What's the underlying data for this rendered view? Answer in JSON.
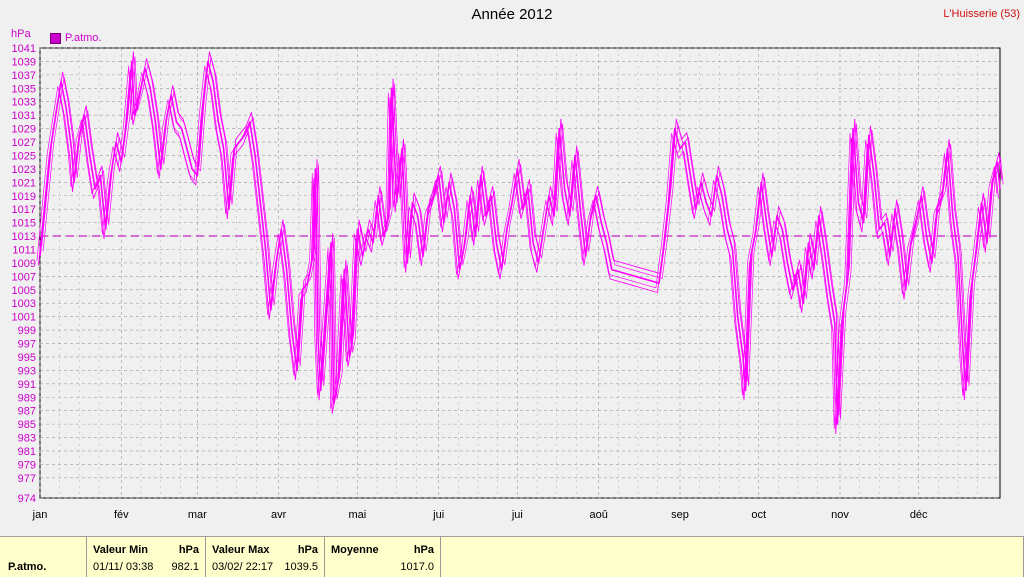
{
  "header": {
    "title": "Année 2012",
    "station": "L'Huisserie (53)"
  },
  "colors": {
    "series": "#ff00ff",
    "axis_text": "#cc00cc",
    "mean_line": "#cc44cc",
    "grid": "#9a9a9a"
  },
  "chart_data": {
    "type": "line",
    "title": "Année 2012",
    "ylabel": "hPa",
    "ylim": [
      974,
      1041
    ],
    "yticks": [
      974,
      977,
      979,
      981,
      983,
      985,
      987,
      989,
      991,
      993,
      995,
      997,
      999,
      1001,
      1003,
      1005,
      1007,
      1009,
      1011,
      1013,
      1015,
      1017,
      1019,
      1021,
      1023,
      1025,
      1027,
      1029,
      1031,
      1033,
      1035,
      1037,
      1039,
      1041
    ],
    "xlim": [
      0,
      366
    ],
    "months": [
      {
        "label": "jan",
        "day": 0
      },
      {
        "label": "fév",
        "day": 31
      },
      {
        "label": "mar",
        "day": 60
      },
      {
        "label": "avr",
        "day": 91
      },
      {
        "label": "mai",
        "day": 121
      },
      {
        "label": "jui",
        "day": 152
      },
      {
        "label": "jui",
        "day": 182
      },
      {
        "label": "aoû",
        "day": 213
      },
      {
        "label": "sep",
        "day": 244
      },
      {
        "label": "oct",
        "day": 274
      },
      {
        "label": "nov",
        "day": 305
      },
      {
        "label": "déc",
        "day": 335
      }
    ],
    "grid": true,
    "legend_position": "top-left",
    "mean_line": 1013,
    "series": [
      {
        "name": "P.atmo.",
        "points": [
          [
            0,
            1010
          ],
          [
            2,
            1018
          ],
          [
            4,
            1026
          ],
          [
            6,
            1031
          ],
          [
            8,
            1036
          ],
          [
            10,
            1032
          ],
          [
            12,
            1026
          ],
          [
            13,
            1021
          ],
          [
            15,
            1028
          ],
          [
            17,
            1031
          ],
          [
            19,
            1025
          ],
          [
            21,
            1020
          ],
          [
            23,
            1022
          ],
          [
            25,
            1014
          ],
          [
            27,
            1022
          ],
          [
            29,
            1027
          ],
          [
            31,
            1024
          ],
          [
            33,
            1030
          ],
          [
            35,
            1039
          ],
          [
            36,
            1031
          ],
          [
            38,
            1034
          ],
          [
            40,
            1038
          ],
          [
            42,
            1035
          ],
          [
            44,
            1030
          ],
          [
            46,
            1023
          ],
          [
            48,
            1030
          ],
          [
            50,
            1034
          ],
          [
            52,
            1030
          ],
          [
            54,
            1029
          ],
          [
            56,
            1026
          ],
          [
            58,
            1023
          ],
          [
            60,
            1022
          ],
          [
            62,
            1032
          ],
          [
            64,
            1039
          ],
          [
            66,
            1036
          ],
          [
            68,
            1030
          ],
          [
            70,
            1026
          ],
          [
            72,
            1017
          ],
          [
            74,
            1026
          ],
          [
            76,
            1027
          ],
          [
            78,
            1028
          ],
          [
            80,
            1030
          ],
          [
            82,
            1025
          ],
          [
            84,
            1018
          ],
          [
            86,
            1011
          ],
          [
            88,
            1002
          ],
          [
            90,
            1009
          ],
          [
            92,
            1014
          ],
          [
            94,
            1008
          ],
          [
            96,
            999
          ],
          [
            98,
            993
          ],
          [
            100,
            1005
          ],
          [
            102,
            1006
          ],
          [
            104,
            1010
          ],
          [
            105,
            1023
          ],
          [
            106,
            998
          ],
          [
            107,
            990
          ],
          [
            109,
            1001
          ],
          [
            111,
            1012
          ],
          [
            112,
            988
          ],
          [
            114,
            992
          ],
          [
            116,
            1008
          ],
          [
            118,
            995
          ],
          [
            119,
            997
          ],
          [
            121,
            1014
          ],
          [
            123,
            1010
          ],
          [
            125,
            1014
          ],
          [
            127,
            1012
          ],
          [
            129,
            1019
          ],
          [
            131,
            1013
          ],
          [
            133,
            1016
          ],
          [
            134,
            1035
          ],
          [
            136,
            1018
          ],
          [
            138,
            1026
          ],
          [
            140,
            1009
          ],
          [
            142,
            1018
          ],
          [
            144,
            1016
          ],
          [
            146,
            1010
          ],
          [
            148,
            1017
          ],
          [
            150,
            1019
          ],
          [
            152,
            1022
          ],
          [
            154,
            1015
          ],
          [
            156,
            1021
          ],
          [
            158,
            1017
          ],
          [
            160,
            1008
          ],
          [
            162,
            1012
          ],
          [
            164,
            1019
          ],
          [
            166,
            1013
          ],
          [
            168,
            1022
          ],
          [
            170,
            1016
          ],
          [
            172,
            1019
          ],
          [
            174,
            1012
          ],
          [
            176,
            1008
          ],
          [
            178,
            1014
          ],
          [
            180,
            1018
          ],
          [
            182,
            1023
          ],
          [
            184,
            1017
          ],
          [
            186,
            1020
          ],
          [
            188,
            1012
          ],
          [
            190,
            1009
          ],
          [
            192,
            1014
          ],
          [
            194,
            1019
          ],
          [
            196,
            1016
          ],
          [
            198,
            1029
          ],
          [
            200,
            1020
          ],
          [
            202,
            1016
          ],
          [
            204,
            1025
          ],
          [
            206,
            1017
          ],
          [
            208,
            1010
          ],
          [
            210,
            1016
          ],
          [
            212,
            1019
          ],
          [
            214,
            1015
          ],
          [
            216,
            1012
          ],
          [
            218,
            1008
          ],
          [
            236,
            1006
          ],
          [
            238,
            1012
          ],
          [
            240,
            1019
          ],
          [
            242,
            1029
          ],
          [
            244,
            1026
          ],
          [
            246,
            1027
          ],
          [
            248,
            1022
          ],
          [
            250,
            1017
          ],
          [
            252,
            1021
          ],
          [
            254,
            1018
          ],
          [
            256,
            1016
          ],
          [
            258,
            1022
          ],
          [
            260,
            1019
          ],
          [
            262,
            1014
          ],
          [
            264,
            1011
          ],
          [
            266,
            1001
          ],
          [
            268,
            995
          ],
          [
            269,
            990
          ],
          [
            271,
            1010
          ],
          [
            273,
            1014
          ],
          [
            275,
            1021
          ],
          [
            277,
            1015
          ],
          [
            279,
            1010
          ],
          [
            281,
            1016
          ],
          [
            283,
            1014
          ],
          [
            285,
            1009
          ],
          [
            287,
            1005
          ],
          [
            289,
            1008
          ],
          [
            291,
            1003
          ],
          [
            293,
            1012
          ],
          [
            295,
            1008
          ],
          [
            297,
            1016
          ],
          [
            299,
            1011
          ],
          [
            301,
            1005
          ],
          [
            303,
            1000
          ],
          [
            304,
            985
          ],
          [
            306,
            1001
          ],
          [
            308,
            1007
          ],
          [
            310,
            1029
          ],
          [
            312,
            1018
          ],
          [
            314,
            1015
          ],
          [
            316,
            1028
          ],
          [
            318,
            1022
          ],
          [
            320,
            1014
          ],
          [
            322,
            1015
          ],
          [
            324,
            1010
          ],
          [
            326,
            1017
          ],
          [
            328,
            1012
          ],
          [
            330,
            1005
          ],
          [
            332,
            1012
          ],
          [
            334,
            1015
          ],
          [
            336,
            1019
          ],
          [
            338,
            1013
          ],
          [
            340,
            1009
          ],
          [
            342,
            1017
          ],
          [
            344,
            1019
          ],
          [
            346,
            1026
          ],
          [
            348,
            1016
          ],
          [
            350,
            1010
          ],
          [
            352,
            995
          ],
          [
            353,
            990
          ],
          [
            355,
            1005
          ],
          [
            357,
            1011
          ],
          [
            359,
            1018
          ],
          [
            361,
            1012
          ],
          [
            363,
            1021
          ],
          [
            365,
            1024
          ],
          [
            366,
            1020
          ]
        ]
      }
    ]
  },
  "legend": {
    "label": "P.atmo."
  },
  "footer": {
    "row_label": "P.atmo.",
    "min": {
      "header": "Valeur Min",
      "unit": "hPa",
      "datetime": "01/11/  03:38",
      "value": "982.1"
    },
    "max": {
      "header": "Valeur Max",
      "unit": "hPa",
      "datetime": "03/02/  22:17",
      "value": "1039.5"
    },
    "mean": {
      "header": "Moyenne",
      "unit": "hPa",
      "value": "1017.0"
    }
  }
}
